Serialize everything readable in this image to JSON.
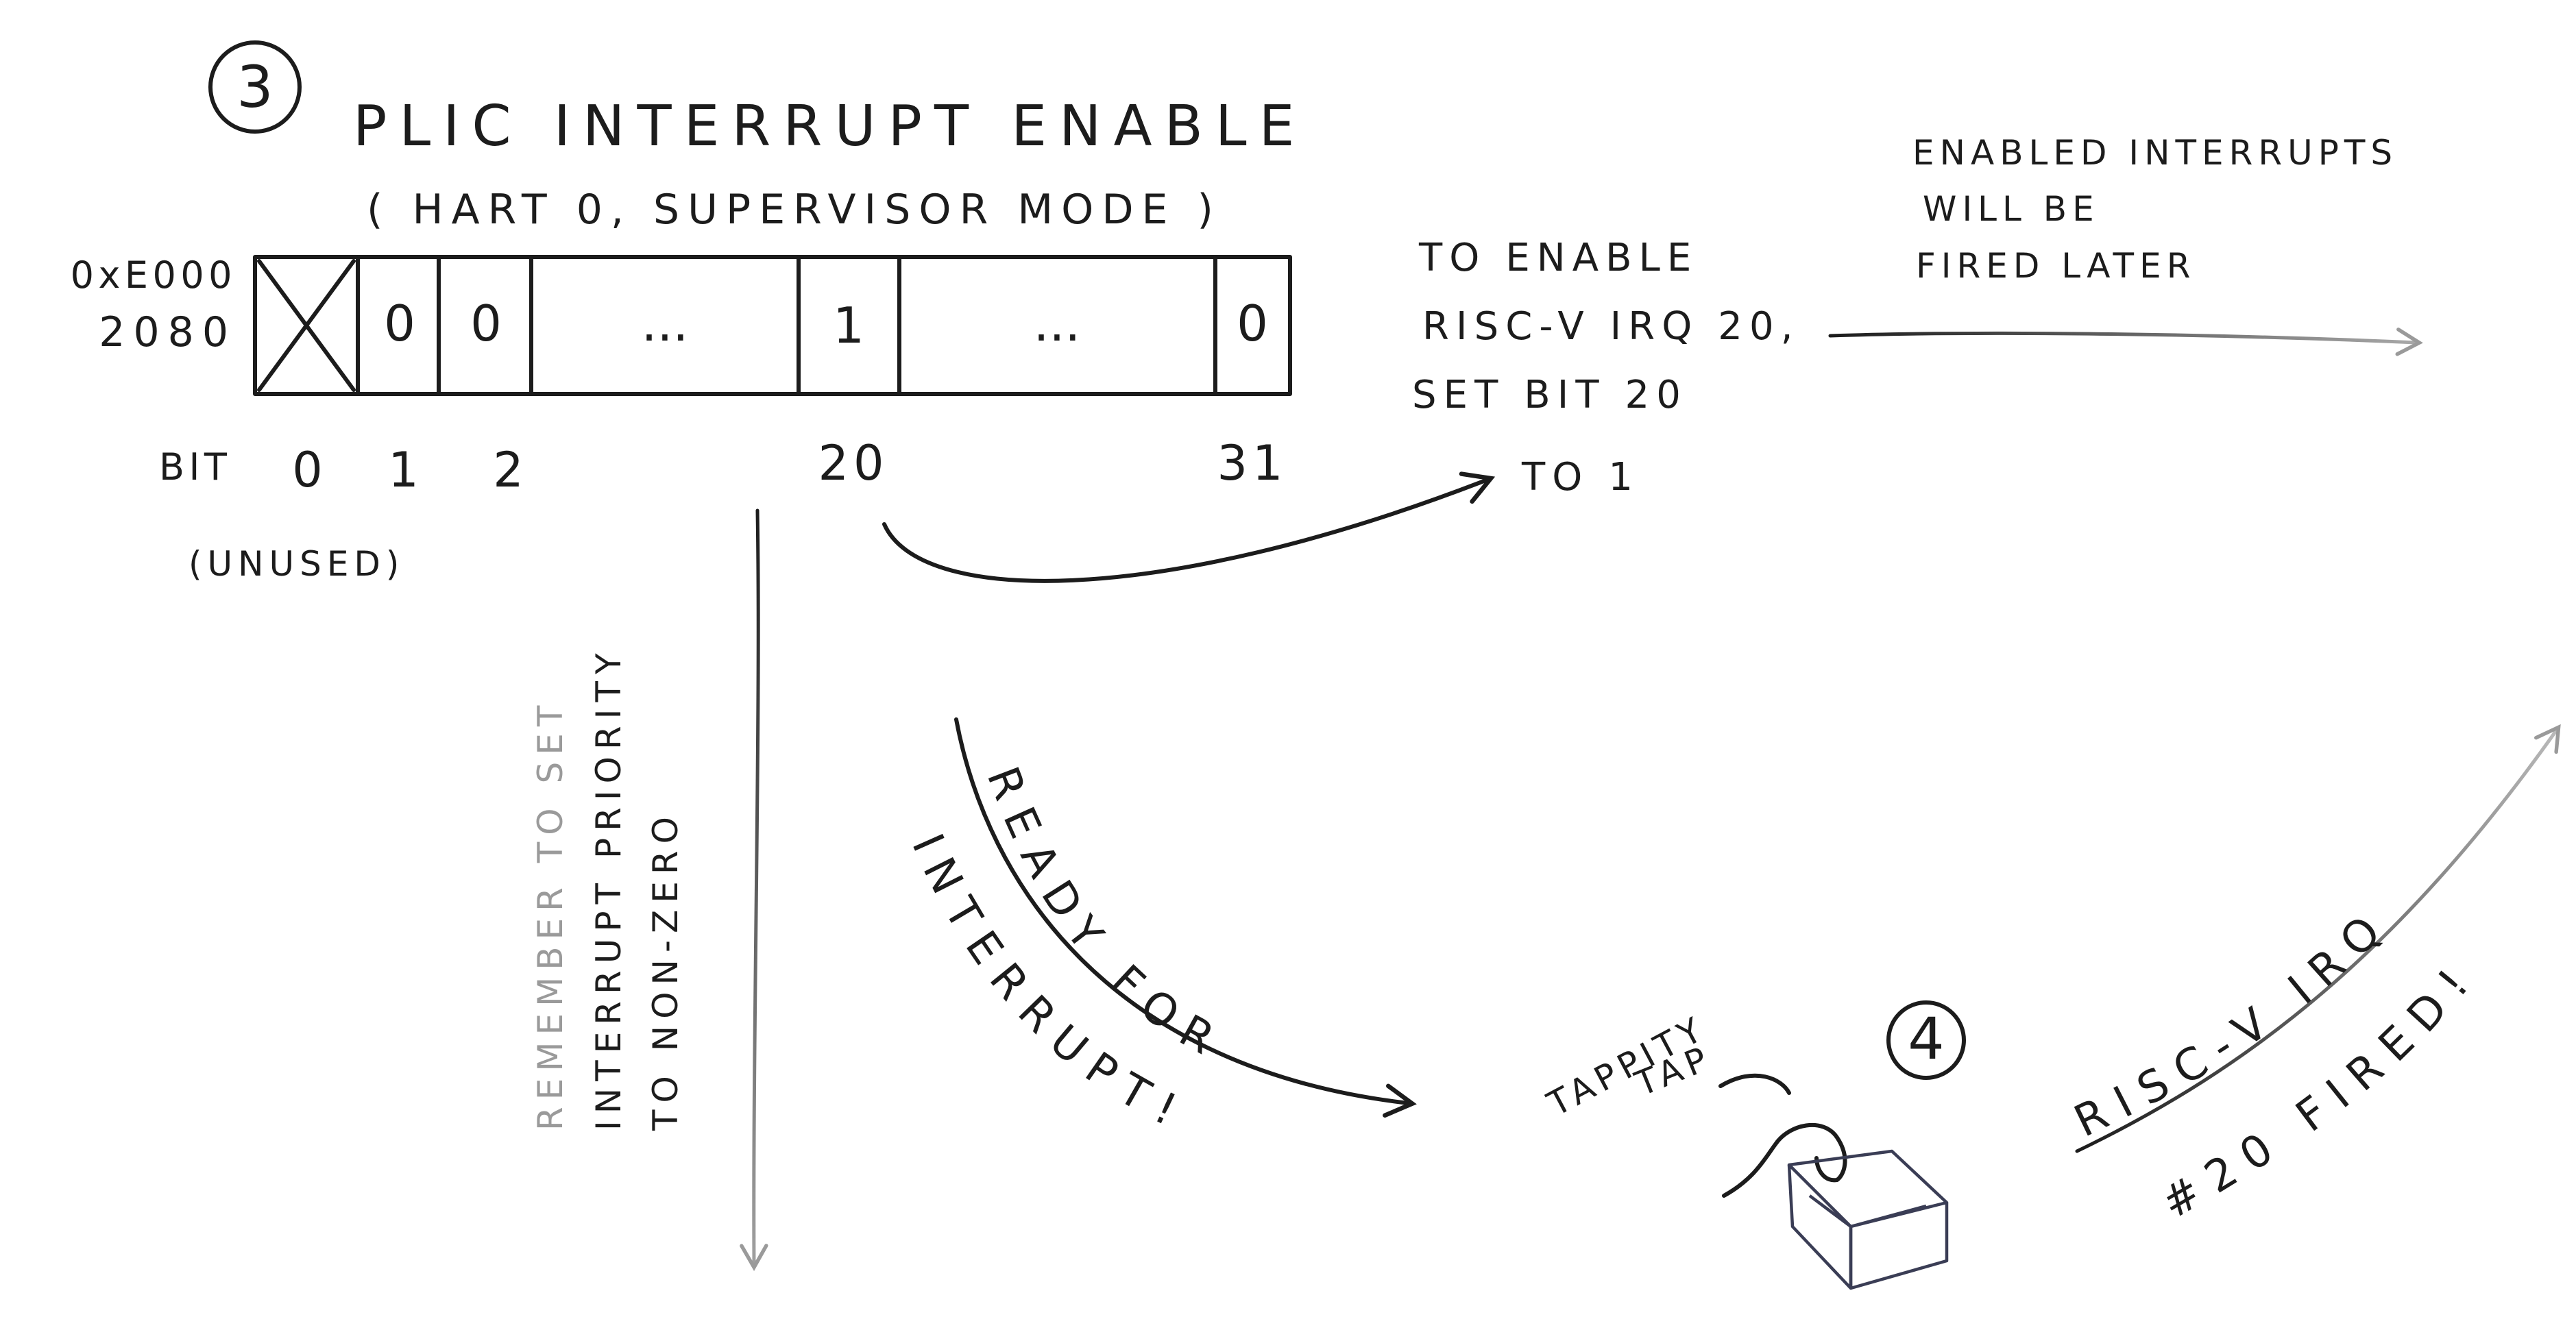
{
  "title": {
    "step_number": "3",
    "main": "PLIC INTERRUPT ENABLE",
    "subtitle": "( HART 0, SUPERVISOR MODE )"
  },
  "register": {
    "address_line1": "0xE000",
    "address_line2": "2080",
    "cells": [
      "0",
      "0",
      "...",
      "1",
      "...",
      "0"
    ],
    "bit_label": "BIT",
    "bit_indices": [
      "0",
      "1",
      "2",
      "20",
      "31"
    ],
    "unused_label": "(UNUSED)"
  },
  "enable_note": {
    "lines": [
      "TO ENABLE",
      "RISC-V IRQ 20,",
      "SET BIT 20",
      "TO 1"
    ]
  },
  "fired_note": {
    "lines": [
      "ENABLED INTERRUPTS",
      "WILL BE",
      "FIRED LATER"
    ]
  },
  "priority_note": {
    "lines": [
      "REMEMBER TO SET",
      "INTERRUPT PRIORITY",
      "TO NON-ZERO"
    ]
  },
  "ready_curve": {
    "outer": "READY FOR",
    "inner": "INTERRUPT!"
  },
  "keyboard": {
    "step_number": "4",
    "sound_line1": "TAPPITY",
    "sound_line2": "TAP"
  },
  "irq_fired": {
    "outer": "RISC-V IRQ",
    "inner": "#20 FIRED!"
  },
  "colors": {
    "ink": "#1c1c1c",
    "faded_ink": "#9a9a9a"
  }
}
